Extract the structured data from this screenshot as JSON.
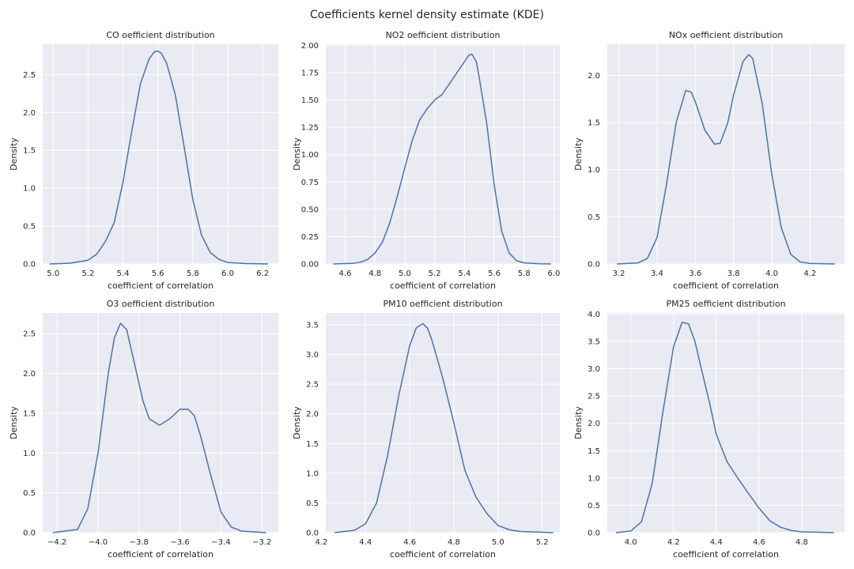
{
  "suptitle": "Coefficients kernel density estimate (KDE)",
  "colors": {
    "line": "#4c72b0",
    "panel_bg": "#eaeaf2",
    "grid": "#ffffff"
  },
  "chart_data": [
    {
      "type": "line",
      "title": "CO oefficient distribution",
      "xlabel": "coefficient of correlation",
      "ylabel": "Density",
      "xlim": [
        4.94,
        6.29
      ],
      "ylim": [
        0,
        2.9
      ],
      "xticks": [
        5.0,
        5.2,
        5.4,
        5.6,
        5.8,
        6.0,
        6.2
      ],
      "xtick_labels": [
        "5.0",
        "5.2",
        "5.4",
        "5.6",
        "5.8",
        "6.0",
        "6.2"
      ],
      "yticks": [
        0,
        0.5,
        1.0,
        1.5,
        2.0,
        2.5
      ],
      "ytick_labels": [
        "0.0",
        "0.5",
        "1.0",
        "1.5",
        "2.0",
        "2.5"
      ],
      "grid": true,
      "series": [
        {
          "x": [
            4.98,
            5.1,
            5.2,
            5.25,
            5.3,
            5.35,
            5.4,
            5.45,
            5.5,
            5.55,
            5.58,
            5.6,
            5.62,
            5.65,
            5.7,
            5.75,
            5.8,
            5.85,
            5.9,
            5.95,
            6.0,
            6.1,
            6.23
          ],
          "y": [
            0,
            0.01,
            0.05,
            0.13,
            0.3,
            0.55,
            1.08,
            1.75,
            2.38,
            2.71,
            2.8,
            2.81,
            2.78,
            2.65,
            2.23,
            1.55,
            0.85,
            0.38,
            0.15,
            0.06,
            0.02,
            0.005,
            0
          ]
        }
      ]
    },
    {
      "type": "line",
      "title": "NO2 oefficient distribution",
      "xlabel": "coefficient of correlation",
      "ylabel": "Density",
      "xlim": [
        4.47,
        6.04
      ],
      "ylim": [
        0,
        2.01
      ],
      "xticks": [
        4.6,
        4.8,
        5.0,
        5.2,
        5.4,
        5.6,
        5.8,
        6.0
      ],
      "xtick_labels": [
        "4.6",
        "4.8",
        "5.0",
        "5.2",
        "5.4",
        "5.6",
        "5.8",
        "6.0"
      ],
      "yticks": [
        0,
        0.25,
        0.5,
        0.75,
        1.0,
        1.25,
        1.5,
        1.75,
        2.0
      ],
      "ytick_labels": [
        "0.00",
        "0.25",
        "0.50",
        "0.75",
        "1.00",
        "1.25",
        "1.50",
        "1.75",
        "2.00"
      ],
      "grid": true,
      "series": [
        {
          "x": [
            4.52,
            4.65,
            4.7,
            4.75,
            4.8,
            4.85,
            4.9,
            4.95,
            5.0,
            5.05,
            5.1,
            5.15,
            5.2,
            5.25,
            5.3,
            5.35,
            5.4,
            5.43,
            5.45,
            5.48,
            5.5,
            5.55,
            5.6,
            5.65,
            5.7,
            5.75,
            5.8,
            5.9,
            5.98
          ],
          "y": [
            0,
            0.005,
            0.015,
            0.04,
            0.1,
            0.2,
            0.38,
            0.62,
            0.88,
            1.13,
            1.32,
            1.42,
            1.5,
            1.55,
            1.65,
            1.75,
            1.85,
            1.91,
            1.92,
            1.85,
            1.7,
            1.28,
            0.72,
            0.3,
            0.1,
            0.03,
            0.01,
            0.002,
            0
          ]
        }
      ]
    },
    {
      "type": "line",
      "title": "NOx oefficient distribution",
      "xlabel": "coefficient of correlation",
      "ylabel": "Density",
      "xlim": [
        3.14,
        4.38
      ],
      "ylim": [
        0,
        2.33
      ],
      "xticks": [
        3.2,
        3.4,
        3.6,
        3.8,
        4.0,
        4.2
      ],
      "xtick_labels": [
        "3.2",
        "3.4",
        "3.6",
        "3.8",
        "4.0",
        "4.2"
      ],
      "yticks": [
        0,
        0.5,
        1.0,
        1.5,
        2.0
      ],
      "ytick_labels": [
        "0.0",
        "0.5",
        "1.0",
        "1.5",
        "2.0"
      ],
      "grid": true,
      "series": [
        {
          "x": [
            3.19,
            3.3,
            3.35,
            3.4,
            3.45,
            3.5,
            3.55,
            3.58,
            3.6,
            3.65,
            3.7,
            3.73,
            3.77,
            3.8,
            3.85,
            3.88,
            3.9,
            3.95,
            4.0,
            4.05,
            4.1,
            4.15,
            4.2,
            4.33
          ],
          "y": [
            0,
            0.01,
            0.06,
            0.28,
            0.85,
            1.5,
            1.84,
            1.82,
            1.72,
            1.42,
            1.27,
            1.28,
            1.5,
            1.79,
            2.15,
            2.22,
            2.18,
            1.7,
            0.95,
            0.38,
            0.1,
            0.02,
            0.005,
            0
          ]
        }
      ]
    },
    {
      "type": "line",
      "title": "O3 oefficient distribution",
      "xlabel": "coefficient of correlation",
      "ylabel": "Density",
      "xlim": [
        -4.27,
        -3.12
      ],
      "ylim": [
        0,
        2.76
      ],
      "xticks": [
        -4.2,
        -4.0,
        -3.8,
        -3.6,
        -3.4,
        -3.2
      ],
      "xtick_labels": [
        "−4.2",
        "−4.0",
        "−3.8",
        "−3.6",
        "−3.4",
        "−3.2"
      ],
      "yticks": [
        0,
        0.5,
        1.0,
        1.5,
        2.0,
        2.5
      ],
      "ytick_labels": [
        "0.0",
        "0.5",
        "1.0",
        "1.5",
        "2.0",
        "2.5"
      ],
      "grid": true,
      "series": [
        {
          "x": [
            -4.22,
            -4.1,
            -4.05,
            -4.0,
            -3.95,
            -3.92,
            -3.89,
            -3.86,
            -3.82,
            -3.78,
            -3.75,
            -3.7,
            -3.65,
            -3.6,
            -3.56,
            -3.53,
            -3.5,
            -3.45,
            -3.4,
            -3.35,
            -3.3,
            -3.18
          ],
          "y": [
            0,
            0.04,
            0.3,
            1.0,
            2.0,
            2.45,
            2.63,
            2.55,
            2.1,
            1.65,
            1.43,
            1.35,
            1.43,
            1.55,
            1.55,
            1.47,
            1.22,
            0.72,
            0.26,
            0.07,
            0.02,
            0
          ]
        }
      ]
    },
    {
      "type": "line",
      "title": "PM10 oefficient distribution",
      "xlabel": "coefficient of correlation",
      "ylabel": "Density",
      "xlim": [
        4.22,
        5.28
      ],
      "ylim": [
        0,
        3.7
      ],
      "xticks": [
        4.2,
        4.4,
        4.6,
        4.8,
        5.0,
        5.2
      ],
      "xtick_labels": [
        "4.2",
        "4.4",
        "4.6",
        "4.8",
        "5.0",
        "5.2"
      ],
      "yticks": [
        0,
        0.5,
        1.0,
        1.5,
        2.0,
        2.5,
        3.0,
        3.5
      ],
      "ytick_labels": [
        "0.0",
        "0.5",
        "1.0",
        "1.5",
        "2.0",
        "2.5",
        "3.0",
        "3.5"
      ],
      "grid": true,
      "series": [
        {
          "x": [
            4.26,
            4.35,
            4.4,
            4.45,
            4.5,
            4.55,
            4.6,
            4.63,
            4.66,
            4.68,
            4.7,
            4.75,
            4.8,
            4.85,
            4.9,
            4.95,
            5.0,
            5.05,
            5.1,
            5.25
          ],
          "y": [
            0,
            0.04,
            0.15,
            0.5,
            1.3,
            2.3,
            3.15,
            3.45,
            3.52,
            3.45,
            3.25,
            2.6,
            1.85,
            1.05,
            0.6,
            0.32,
            0.12,
            0.05,
            0.02,
            0
          ]
        }
      ]
    },
    {
      "type": "line",
      "title": "PM25 oefficient distribution",
      "xlabel": "coefficient of correlation",
      "ylabel": "Density",
      "xlim": [
        3.89,
        5.0
      ],
      "ylim": [
        0,
        4.02
      ],
      "xticks": [
        4.0,
        4.2,
        4.4,
        4.6,
        4.8
      ],
      "xtick_labels": [
        "4.0",
        "4.2",
        "4.4",
        "4.6",
        "4.8"
      ],
      "yticks": [
        0,
        0.5,
        1.0,
        1.5,
        2.0,
        2.5,
        3.0,
        3.5,
        4.0
      ],
      "ytick_labels": [
        "0.0",
        "0.5",
        "1.0",
        "1.5",
        "2.0",
        "2.5",
        "3.0",
        "3.5",
        "4.0"
      ],
      "grid": true,
      "series": [
        {
          "x": [
            3.93,
            4.0,
            4.05,
            4.1,
            4.15,
            4.2,
            4.24,
            4.27,
            4.3,
            4.33,
            4.37,
            4.4,
            4.45,
            4.5,
            4.55,
            4.6,
            4.65,
            4.7,
            4.75,
            4.8,
            4.95
          ],
          "y": [
            0,
            0.03,
            0.2,
            0.9,
            2.2,
            3.4,
            3.85,
            3.82,
            3.5,
            3.0,
            2.35,
            1.8,
            1.3,
            1.0,
            0.72,
            0.45,
            0.22,
            0.1,
            0.04,
            0.015,
            0
          ]
        }
      ]
    }
  ]
}
